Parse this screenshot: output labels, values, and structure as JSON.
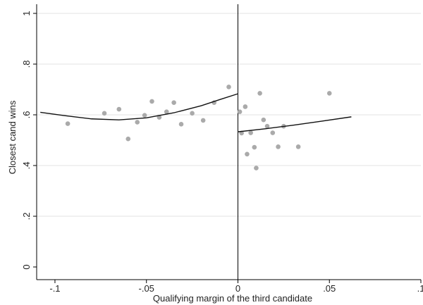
{
  "chart_data": {
    "type": "scatter",
    "xlabel": "Qualifying margin of the third candidate",
    "ylabel": "Closest cand wins",
    "xlim": [
      -0.11,
      0.1
    ],
    "ylim": [
      0,
      1
    ],
    "x_ticks": [
      -0.1,
      -0.05,
      0,
      0.05,
      0.1
    ],
    "x_tick_labels": [
      "-.1",
      "-.05",
      "0",
      ".05",
      ".1"
    ],
    "y_ticks": [
      0,
      0.2,
      0.4,
      0.6,
      0.8,
      1
    ],
    "y_tick_labels": [
      "0",
      ".2",
      ".4",
      ".6",
      ".8",
      "1"
    ],
    "grid": "horizontal",
    "cutoff_line_x": 0,
    "colors": {
      "points": "#aaaaaa",
      "fit": "#111111",
      "grid": "#e3e3e3"
    },
    "points": [
      {
        "x": -0.093,
        "y": 0.565
      },
      {
        "x": -0.073,
        "y": 0.606
      },
      {
        "x": -0.065,
        "y": 0.622
      },
      {
        "x": -0.06,
        "y": 0.505
      },
      {
        "x": -0.055,
        "y": 0.571
      },
      {
        "x": -0.051,
        "y": 0.598
      },
      {
        "x": -0.047,
        "y": 0.653
      },
      {
        "x": -0.043,
        "y": 0.59
      },
      {
        "x": -0.039,
        "y": 0.612
      },
      {
        "x": -0.035,
        "y": 0.648
      },
      {
        "x": -0.031,
        "y": 0.563
      },
      {
        "x": -0.025,
        "y": 0.606
      },
      {
        "x": -0.019,
        "y": 0.578
      },
      {
        "x": -0.013,
        "y": 0.648
      },
      {
        "x": -0.005,
        "y": 0.71
      },
      {
        "x": 0.001,
        "y": 0.612
      },
      {
        "x": 0.002,
        "y": 0.528
      },
      {
        "x": 0.004,
        "y": 0.632
      },
      {
        "x": 0.005,
        "y": 0.445
      },
      {
        "x": 0.007,
        "y": 0.529
      },
      {
        "x": 0.009,
        "y": 0.472
      },
      {
        "x": 0.01,
        "y": 0.39
      },
      {
        "x": 0.012,
        "y": 0.685
      },
      {
        "x": 0.014,
        "y": 0.58
      },
      {
        "x": 0.016,
        "y": 0.555
      },
      {
        "x": 0.019,
        "y": 0.529
      },
      {
        "x": 0.022,
        "y": 0.474
      },
      {
        "x": 0.025,
        "y": 0.555
      },
      {
        "x": 0.033,
        "y": 0.474
      },
      {
        "x": 0.05,
        "y": 0.685
      }
    ],
    "fit_left": [
      {
        "x": -0.108,
        "y": 0.61
      },
      {
        "x": -0.095,
        "y": 0.597
      },
      {
        "x": -0.08,
        "y": 0.584
      },
      {
        "x": -0.065,
        "y": 0.58
      },
      {
        "x": -0.05,
        "y": 0.588
      },
      {
        "x": -0.035,
        "y": 0.608
      },
      {
        "x": -0.02,
        "y": 0.636
      },
      {
        "x": -0.01,
        "y": 0.66
      },
      {
        "x": 0,
        "y": 0.683
      }
    ],
    "fit_right": [
      {
        "x": 0,
        "y": 0.533
      },
      {
        "x": 0.015,
        "y": 0.545
      },
      {
        "x": 0.03,
        "y": 0.559
      },
      {
        "x": 0.045,
        "y": 0.574
      },
      {
        "x": 0.062,
        "y": 0.592
      }
    ]
  }
}
